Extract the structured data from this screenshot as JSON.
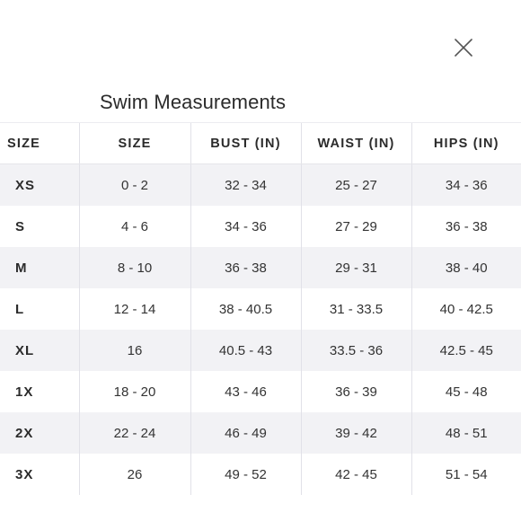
{
  "dialog": {
    "title": "Swim Measurements",
    "close_icon": "close-icon"
  },
  "table": {
    "headers": [
      "SIZE",
      "SIZE",
      "BUST (IN)",
      "WAIST (IN)",
      "HIPS (IN)"
    ],
    "rows": [
      [
        "XS",
        "0 - 2",
        "32 - 34",
        "25 - 27",
        "34 - 36"
      ],
      [
        "S",
        "4 - 6",
        "34 - 36",
        "27 - 29",
        "36 - 38"
      ],
      [
        "M",
        "8 - 10",
        "36 - 38",
        "29 - 31",
        "38 - 40"
      ],
      [
        "L",
        "12 - 14",
        "38 - 40.5",
        "31 - 33.5",
        "40 - 42.5"
      ],
      [
        "XL",
        "16",
        "40.5 - 43",
        "33.5 - 36",
        "42.5 - 45"
      ],
      [
        "1X",
        "18 - 20",
        "43 - 46",
        "36 - 39",
        "45 - 48"
      ],
      [
        "2X",
        "22 - 24",
        "46 - 49",
        "39 - 42",
        "48 - 51"
      ],
      [
        "3X",
        "26",
        "49 - 52",
        "42 - 45",
        "51 - 54"
      ]
    ]
  },
  "colors": {
    "stripe": "#f2f2f5",
    "divider": "#e1e1e8",
    "text": "#2b2b2b"
  }
}
